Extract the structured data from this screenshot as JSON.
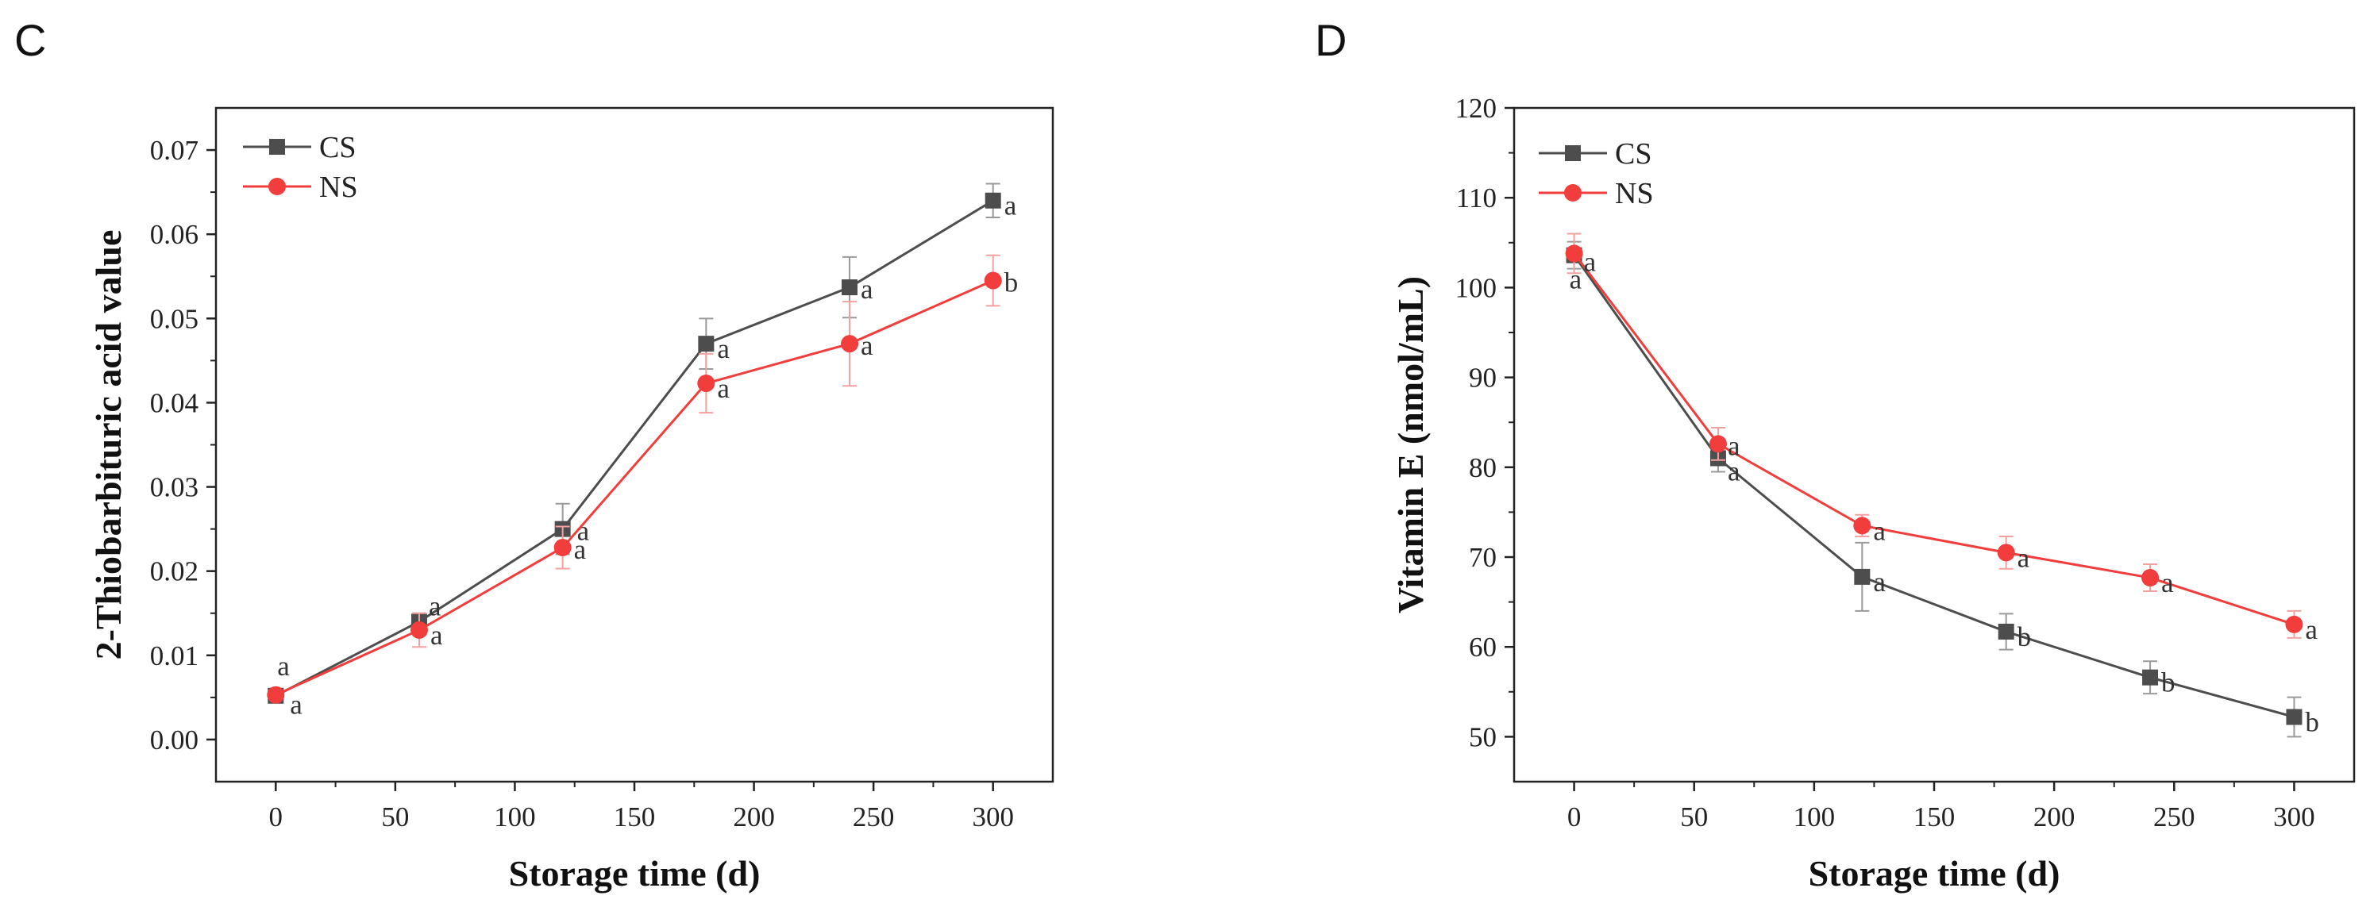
{
  "chart_data": [
    {
      "panel": "C",
      "type": "line",
      "xlabel": "Storage time (d)",
      "ylabel": "2-Thiobarbituric acid value",
      "xlim": [
        -25,
        325
      ],
      "ylim": [
        -0.005,
        0.075
      ],
      "xticks": [
        0,
        50,
        100,
        150,
        200,
        250,
        300
      ],
      "yticks": [
        0.0,
        0.01,
        0.02,
        0.03,
        0.04,
        0.05,
        0.06,
        0.07
      ],
      "ytick_decimals": 2,
      "x": [
        0,
        60,
        120,
        180,
        240,
        300
      ],
      "series": [
        {
          "name": "CS",
          "color": "#4d4d4d",
          "errcolor": "#9a9a9a",
          "marker": "square",
          "values": [
            0.0052,
            0.014,
            0.025,
            0.047,
            0.0537,
            0.064
          ],
          "errors": [
            0.0006,
            0.001,
            0.003,
            0.003,
            0.0036,
            0.002
          ],
          "labels": [
            "a",
            "a",
            "a",
            "a",
            "a",
            "a"
          ]
        },
        {
          "name": "NS",
          "color": "#f23d3d",
          "errcolor": "#f5a0a0",
          "marker": "circle",
          "values": [
            0.0053,
            0.013,
            0.0228,
            0.0423,
            0.047,
            0.0545
          ],
          "errors": [
            0.0005,
            0.002,
            0.0025,
            0.0035,
            0.005,
            0.003
          ],
          "labels": [
            "a",
            "a",
            "a",
            "a",
            "a",
            "b"
          ]
        }
      ]
    },
    {
      "panel": "D",
      "type": "line",
      "xlabel": "Storage time (d)",
      "ylabel": "Vitamin E (nmol/mL)",
      "xlim": [
        -25,
        325
      ],
      "ylim": [
        45,
        120
      ],
      "xticks": [
        0,
        50,
        100,
        150,
        200,
        250,
        300
      ],
      "yticks": [
        50,
        60,
        70,
        80,
        90,
        100,
        110,
        120
      ],
      "ytick_decimals": 0,
      "x": [
        0,
        60,
        120,
        180,
        240,
        300
      ],
      "series": [
        {
          "name": "CS",
          "color": "#4d4d4d",
          "errcolor": "#9a9a9a",
          "marker": "square",
          "values": [
            103.6,
            81.0,
            67.8,
            61.7,
            56.6,
            52.2
          ],
          "errors": [
            1.5,
            1.5,
            3.8,
            2.0,
            1.8,
            2.2
          ],
          "labels": [
            "a",
            "a",
            "a",
            "b",
            "b",
            "b"
          ]
        },
        {
          "name": "NS",
          "color": "#f23d3d",
          "errcolor": "#f5a0a0",
          "marker": "circle",
          "values": [
            103.8,
            82.6,
            73.5,
            70.5,
            67.7,
            62.5
          ],
          "errors": [
            2.2,
            1.8,
            1.2,
            1.8,
            1.5,
            1.5
          ],
          "labels": [
            "a",
            "a",
            "a",
            "a",
            "a",
            "a"
          ]
        }
      ]
    }
  ]
}
